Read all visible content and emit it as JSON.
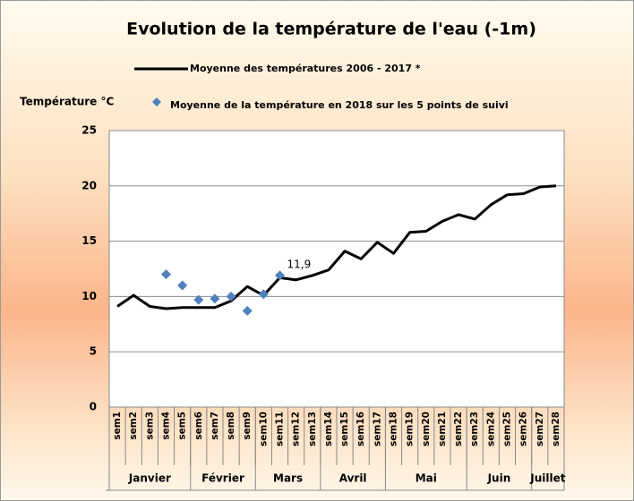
{
  "chart_data": {
    "type": "line",
    "title": "Evolution de la température de l'eau (-1m)",
    "y_label": "Température °C",
    "categories": [
      "sem1",
      "sem2",
      "sem3",
      "sem4",
      "sem5",
      "sem6",
      "sem7",
      "sem8",
      "sem9",
      "sem10",
      "sem11",
      "sem12",
      "sem13",
      "sem14",
      "sem15",
      "sem16",
      "sem17",
      "sem18",
      "sem19",
      "sem20",
      "sem21",
      "sem22",
      "sem23",
      "sem24",
      "sem25",
      "sem26",
      "sem27",
      "sem28"
    ],
    "x_groups": [
      "Janvier",
      "Janvier",
      "Janvier",
      "Janvier",
      "Janvier",
      "Février",
      "Février",
      "Février",
      "Février",
      "Mars",
      "Mars",
      "Mars",
      "Mars",
      "Avril",
      "Avril",
      "Avril",
      "Avril",
      "Mai",
      "Mai",
      "Mai",
      "Mai",
      "Mai",
      "Juin",
      "Juin",
      "Juin",
      "Juin",
      "Juillet",
      "Juillet"
    ],
    "series": [
      {
        "name": "Moyenne des températures 2006 - 2017 *",
        "type": "line",
        "color": "#000000",
        "values": [
          9.1,
          10.1,
          9.1,
          8.9,
          9.0,
          9.0,
          9.0,
          9.6,
          10.9,
          10.1,
          11.7,
          11.5,
          11.9,
          12.4,
          14.1,
          13.4,
          14.9,
          13.9,
          15.8,
          15.9,
          16.8,
          17.4,
          17.0,
          18.3,
          19.2,
          19.3,
          19.9,
          20.0
        ]
      },
      {
        "name": "Moyenne de la température en 2018 sur les 5 points de suivi",
        "type": "scatter",
        "color": "#4f81bd",
        "values": [
          null,
          null,
          null,
          12.0,
          11.0,
          9.7,
          9.8,
          10.0,
          8.7,
          10.2,
          11.9,
          null,
          null,
          null,
          null,
          null,
          null,
          null,
          null,
          null,
          null,
          null,
          null,
          null,
          null,
          null,
          null,
          null
        ],
        "value_labels": [
          null,
          null,
          null,
          null,
          null,
          null,
          null,
          null,
          null,
          null,
          "11,9",
          null,
          null,
          null,
          null,
          null,
          null,
          null,
          null,
          null,
          null,
          null,
          null,
          null,
          null,
          null,
          null,
          null
        ]
      }
    ],
    "ylim": [
      0,
      25
    ],
    "yticks": [
      0,
      5,
      10,
      15,
      20,
      25
    ],
    "grid": true
  }
}
